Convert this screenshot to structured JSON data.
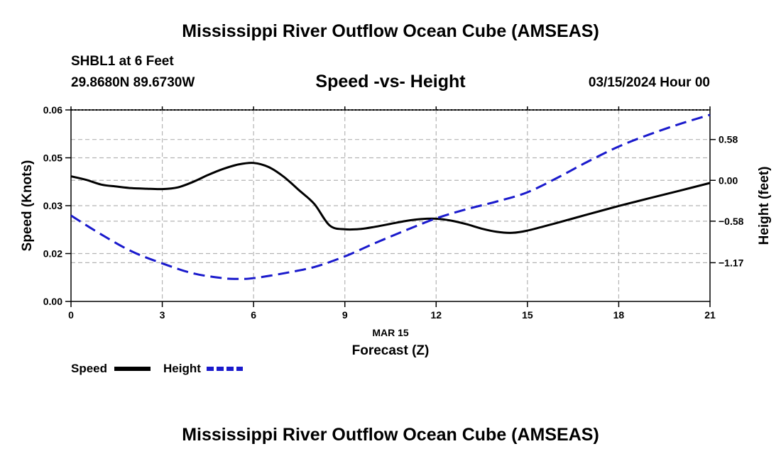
{
  "header": {
    "title_top": "Mississippi River Outflow Ocean Cube (AMSEAS)",
    "title_bottom": "Mississippi River Outflow Ocean Cube (AMSEAS)",
    "station": "SHBL1 at 6 Feet",
    "coords": "29.8680N  89.6730W",
    "subtitle": "Speed -vs- Height",
    "datetime": "03/15/2024 Hour 00"
  },
  "colors": {
    "speed": "#000000",
    "height": "#1a1acc",
    "grid": "#b4b4b4"
  },
  "chart_data": {
    "type": "line",
    "title": "Speed -vs- Height",
    "xlabel_date": "MAR 15",
    "xlabel": "Forecast (Z)",
    "ylabel": "Speed (Knots)",
    "y2label": "Height (feet)",
    "xlim": [
      0,
      21
    ],
    "ylim": [
      0,
      0.06
    ],
    "y2lim": [
      -1.72,
      1.0
    ],
    "x_ticks": [
      "0",
      "3",
      "6",
      "9",
      "12",
      "15",
      "18",
      "21"
    ],
    "x_tick_values": [
      0,
      3,
      6,
      9,
      12,
      15,
      18,
      21
    ],
    "y_ticks": [
      "0.00",
      "0.02",
      "0.03",
      "0.05",
      "0.06"
    ],
    "y_tick_values": [
      0,
      0.015,
      0.03,
      0.045,
      0.06
    ],
    "y2_ticks": [
      "0.58",
      "0.00",
      "−0.58",
      "−1.17"
    ],
    "y2_tick_values": [
      0.58,
      0,
      -0.58,
      -1.17
    ],
    "grid": true,
    "legend": "bottom-left",
    "series": [
      {
        "name": "Speed",
        "axis": "left",
        "style": "solid",
        "x": [
          0,
          0.5,
          1,
          1.5,
          2,
          2.5,
          3,
          3.5,
          4,
          4.5,
          5,
          5.5,
          6,
          6.5,
          7,
          7.5,
          8,
          8.5,
          9,
          9.5,
          10,
          10.5,
          11,
          11.5,
          12,
          12.5,
          13,
          13.5,
          14,
          14.5,
          15,
          16,
          17,
          18,
          19,
          20,
          21
        ],
        "values": [
          0.0392,
          0.0381,
          0.0366,
          0.036,
          0.0355,
          0.0353,
          0.0352,
          0.0357,
          0.0374,
          0.0396,
          0.0415,
          0.0429,
          0.0434,
          0.0421,
          0.039,
          0.0348,
          0.0305,
          0.0238,
          0.0226,
          0.0227,
          0.0234,
          0.0243,
          0.0252,
          0.0258,
          0.0259,
          0.0253,
          0.0242,
          0.0228,
          0.0218,
          0.0215,
          0.0222,
          0.0247,
          0.0273,
          0.0299,
          0.0323,
          0.0347,
          0.0371
        ]
      },
      {
        "name": "Height",
        "axis": "right",
        "style": "dashed",
        "x": [
          0,
          1,
          2,
          3,
          4,
          5,
          5.5,
          6,
          7,
          8,
          9,
          10,
          11,
          12,
          13,
          14,
          15,
          16,
          17,
          18,
          19,
          20,
          21
        ],
        "values": [
          -0.5,
          -0.77,
          -1.01,
          -1.18,
          -1.32,
          -1.39,
          -1.4,
          -1.39,
          -1.32,
          -1.23,
          -1.08,
          -0.89,
          -0.71,
          -0.54,
          -0.41,
          -0.3,
          -0.17,
          0.04,
          0.27,
          0.48,
          0.65,
          0.8,
          0.93
        ]
      }
    ]
  }
}
